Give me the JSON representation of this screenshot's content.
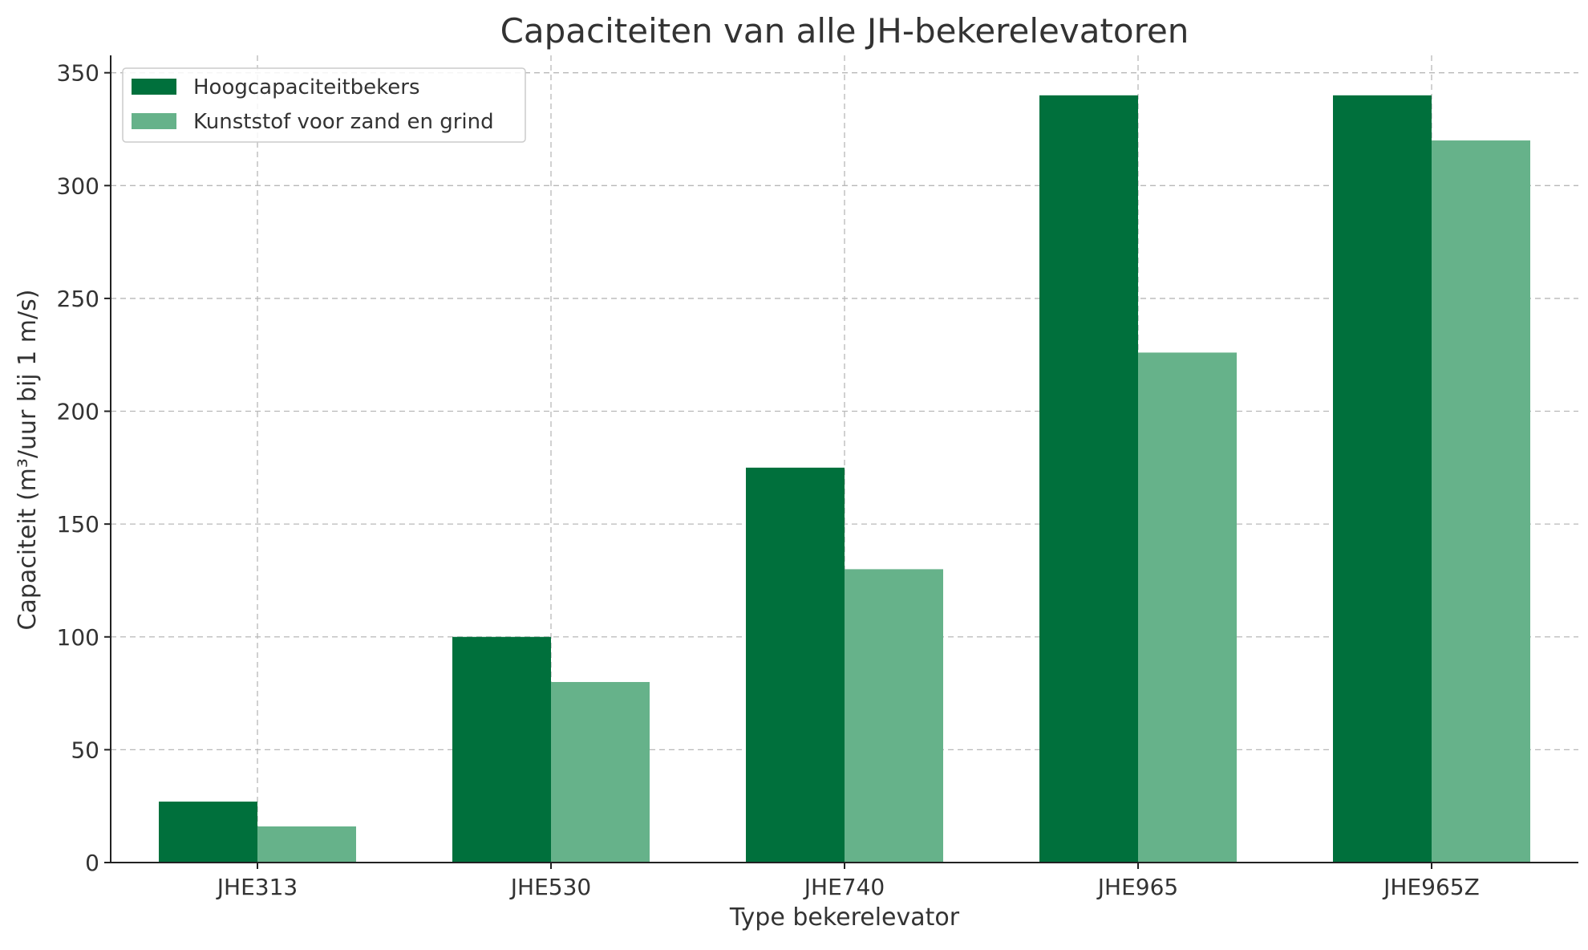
{
  "chart_data": {
    "type": "bar",
    "title": "Capaciteiten van alle JH-bekerelevatoren",
    "xlabel": "Type bekerelevator",
    "ylabel": "Capaciteit (m³/uur bij 1 m/s)",
    "categories": [
      "JHE313",
      "JHE530",
      "JHE740",
      "JHE965",
      "JHE965Z"
    ],
    "series": [
      {
        "name": "Hoogcapaciteitbekers",
        "values": [
          27,
          100,
          175,
          340,
          340
        ],
        "color": "#00703c"
      },
      {
        "name": "Kunststof voor zand en grind",
        "values": [
          16,
          80,
          130,
          226,
          320
        ],
        "color": "#66b28a"
      }
    ],
    "ylim": [
      0,
      357
    ],
    "yticks": [
      0,
      50,
      100,
      150,
      200,
      250,
      300,
      350
    ],
    "grid": true,
    "legend_position": "top-left"
  }
}
